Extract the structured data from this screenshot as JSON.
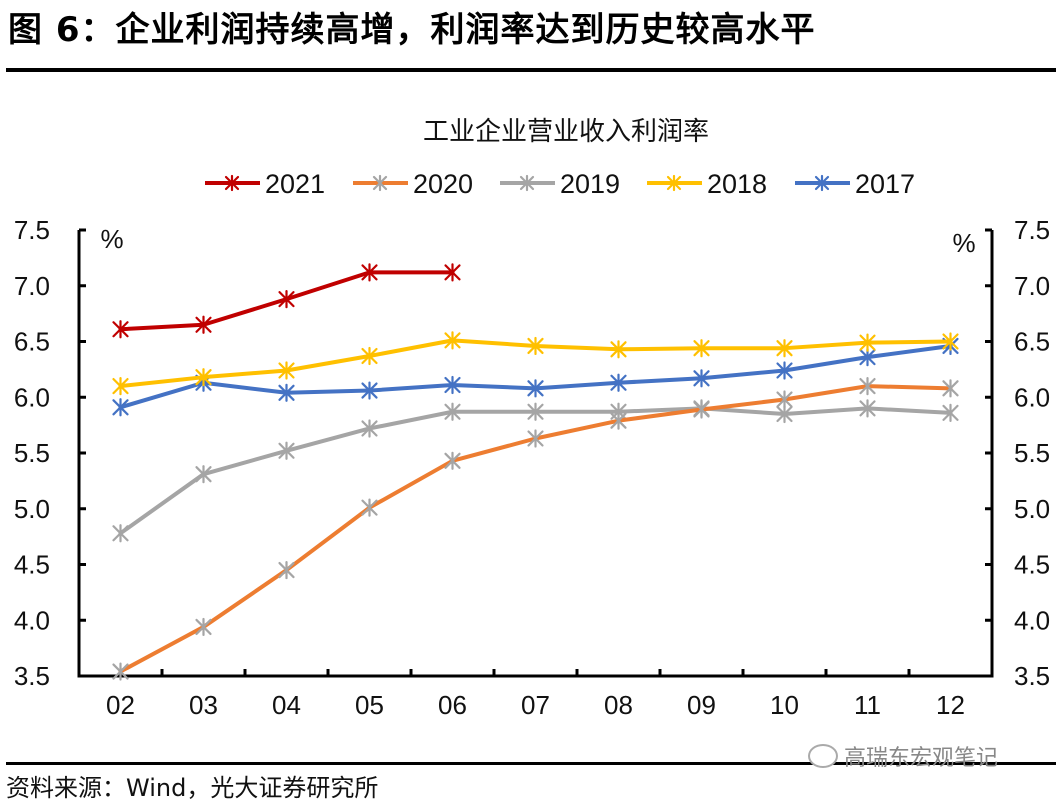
{
  "figure": {
    "title": "图 6：企业利润持续高增，利润率达到历史较高水平",
    "source": "资料来源：Wind，光大证券研究所",
    "watermark": "高瑞东宏观笔记"
  },
  "chart_data": {
    "type": "line",
    "title": "工业企业营业收入利润率",
    "xlabel": "",
    "ylabel": "%",
    "y2label": "%",
    "categories": [
      "02",
      "03",
      "04",
      "05",
      "06",
      "07",
      "08",
      "09",
      "10",
      "11",
      "12"
    ],
    "ylim": [
      3.5,
      7.5
    ],
    "yticks": [
      "3.5",
      "4.0",
      "4.5",
      "5.0",
      "5.5",
      "6.0",
      "6.5",
      "7.0",
      "7.5"
    ],
    "grid": false,
    "legend_position": "top",
    "series": [
      {
        "name": "2021",
        "color": "#C00000",
        "marker_color": "#C00000",
        "values": [
          6.61,
          6.65,
          6.88,
          7.12,
          7.12,
          null,
          null,
          null,
          null,
          null,
          null
        ]
      },
      {
        "name": "2020",
        "color": "#ED7D31",
        "marker_color": "#A5A5A5",
        "values": [
          3.54,
          3.94,
          4.45,
          5.01,
          5.43,
          5.63,
          5.79,
          5.89,
          5.98,
          6.1,
          6.08
        ]
      },
      {
        "name": "2019",
        "color": "#A5A5A5",
        "marker_color": "#A5A5A5",
        "values": [
          4.78,
          5.31,
          5.52,
          5.72,
          5.87,
          5.87,
          5.87,
          5.9,
          5.85,
          5.9,
          5.86
        ]
      },
      {
        "name": "2018",
        "color": "#FFC000",
        "marker_color": "#FFC000",
        "values": [
          6.1,
          6.18,
          6.24,
          6.37,
          6.51,
          6.46,
          6.43,
          6.44,
          6.44,
          6.49,
          6.5
        ]
      },
      {
        "name": "2017",
        "color": "#4472C4",
        "marker_color": "#4472C4",
        "values": [
          5.91,
          6.13,
          6.04,
          6.06,
          6.11,
          6.08,
          6.13,
          6.17,
          6.24,
          6.36,
          6.46
        ]
      }
    ]
  }
}
